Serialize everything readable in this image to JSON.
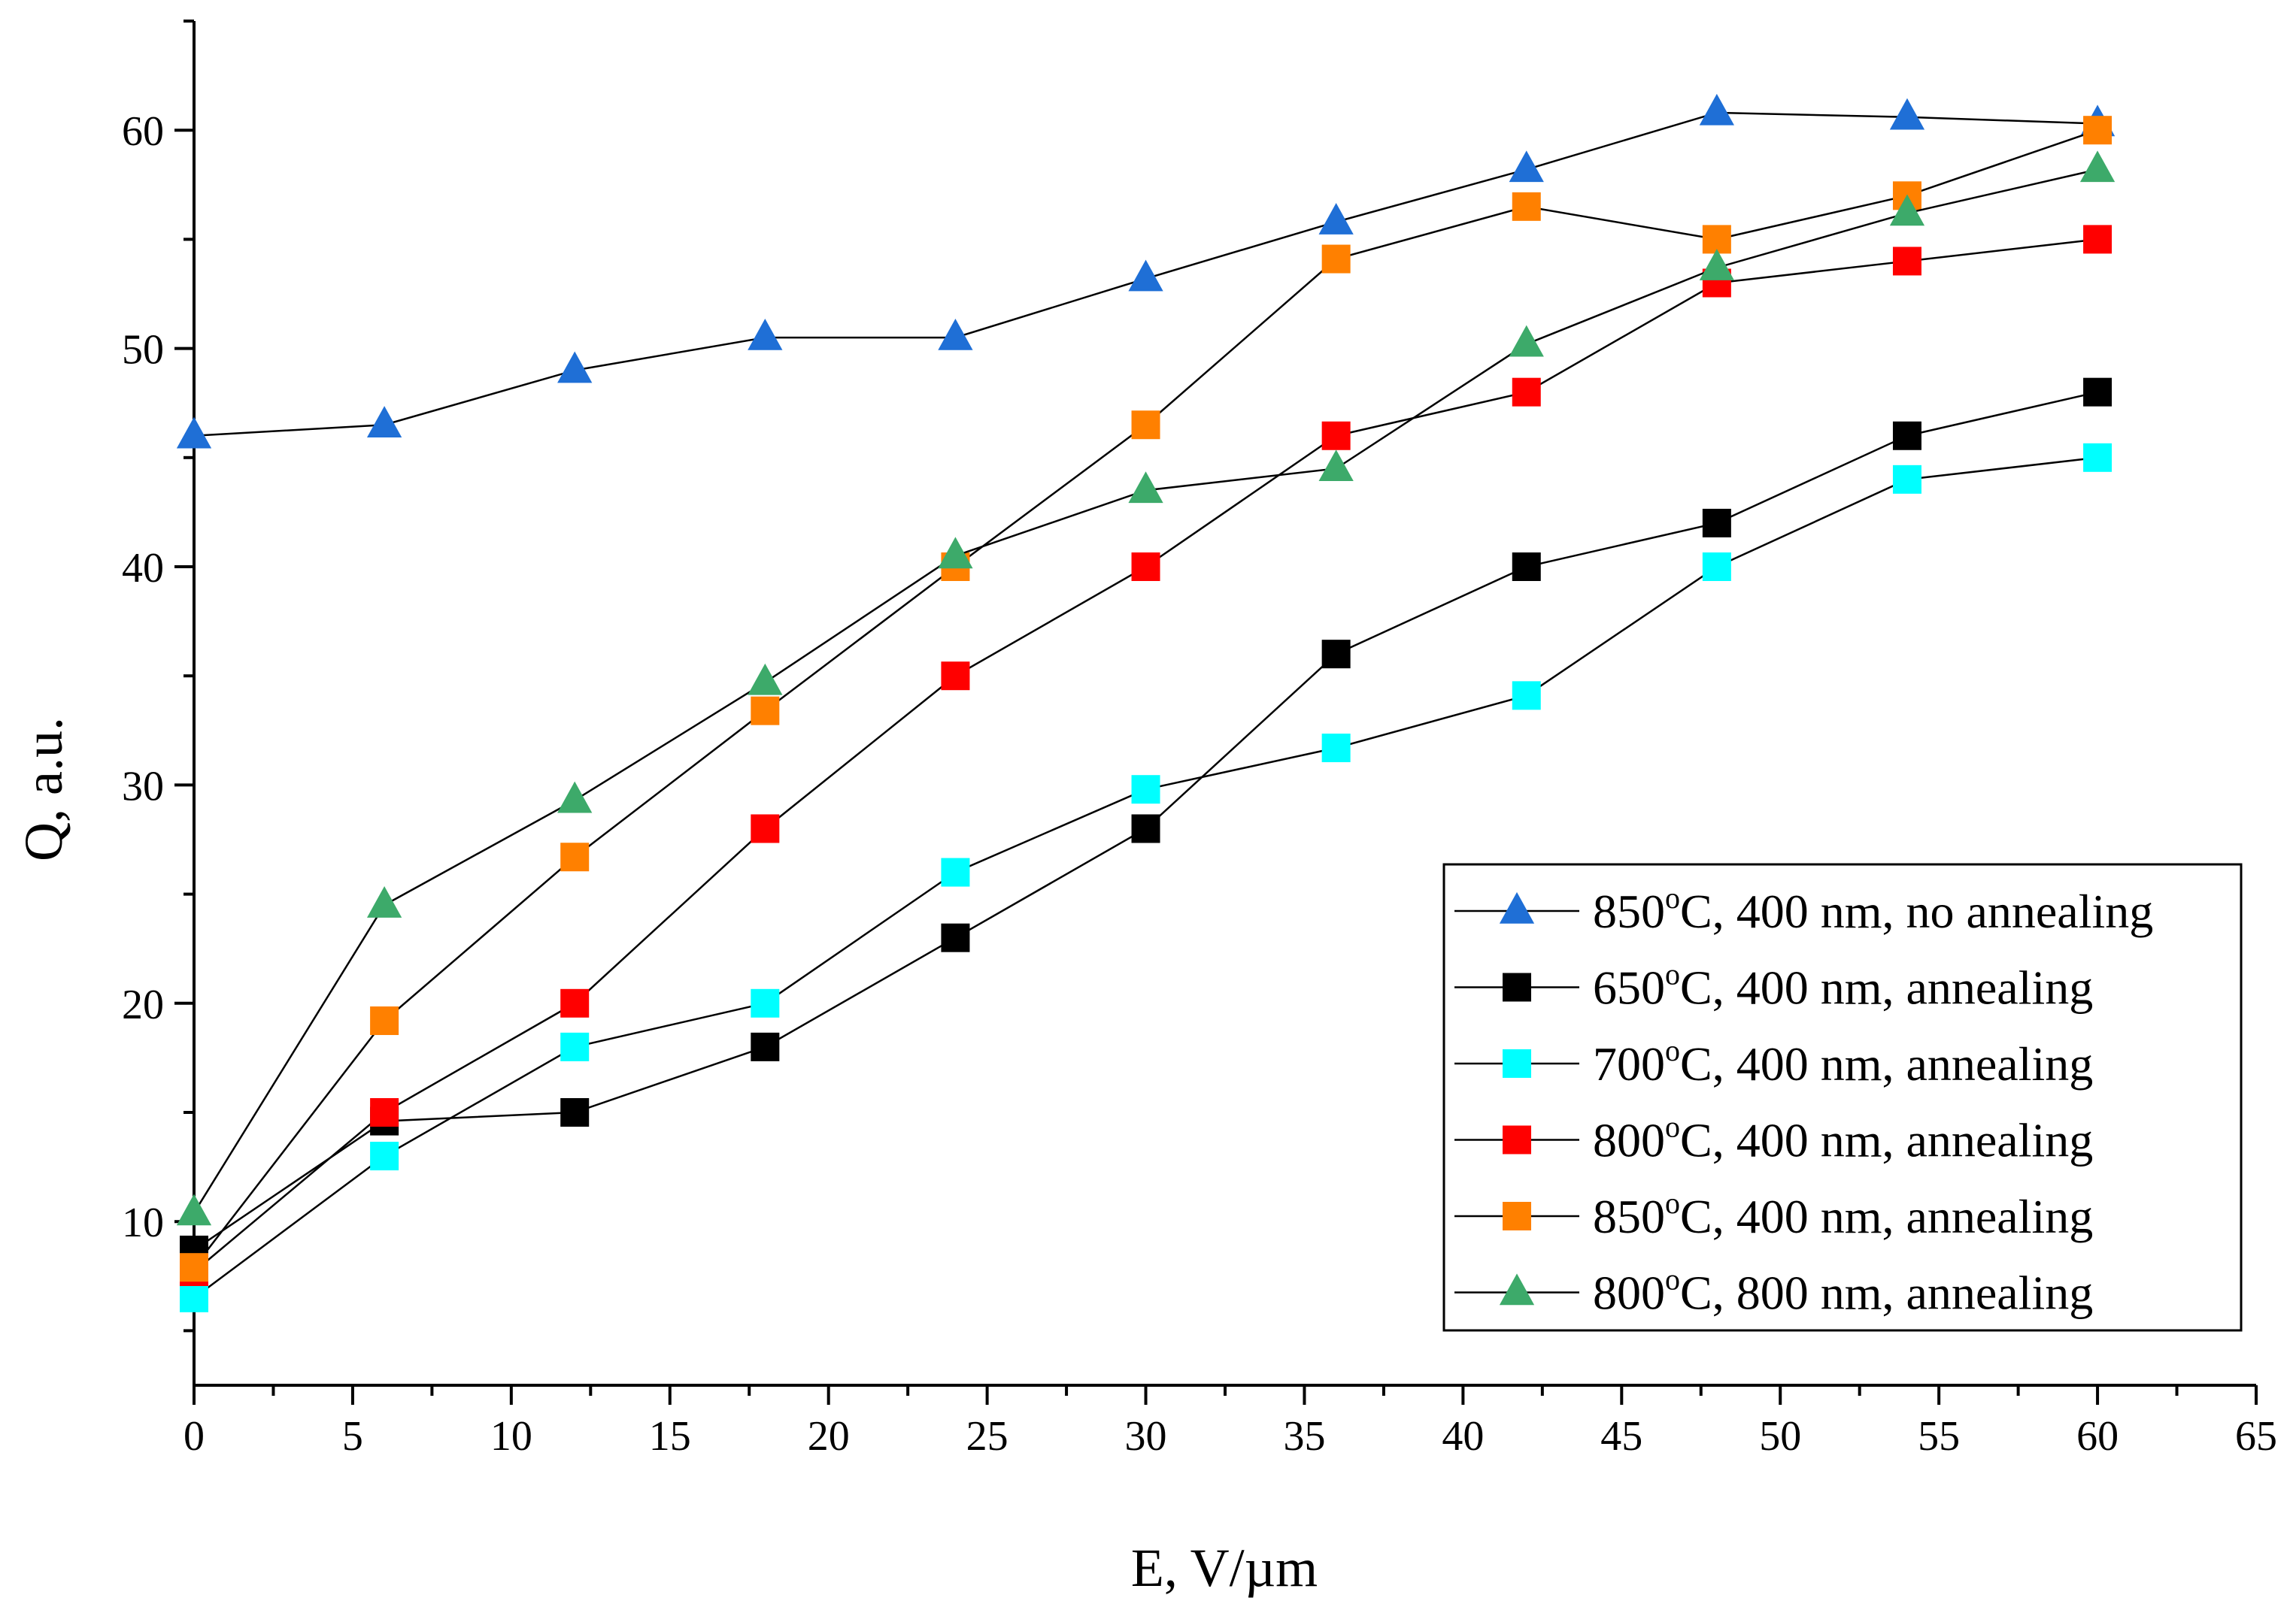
{
  "chart_data": {
    "type": "line",
    "title": "",
    "xlabel": "E, V/µm",
    "ylabel": "Q, a.u.",
    "xlim": [
      0,
      65
    ],
    "ylim": [
      2.5,
      65
    ],
    "x_ticks": [
      0,
      5,
      10,
      15,
      20,
      25,
      30,
      35,
      40,
      45,
      50,
      55,
      60,
      65
    ],
    "y_ticks": [
      10,
      20,
      30,
      40,
      50,
      60
    ],
    "legend_position": "bottom-right",
    "grid": false,
    "x": [
      0,
      6,
      12,
      18,
      24,
      30,
      36,
      42,
      48,
      54,
      60
    ],
    "series": [
      {
        "name": "850",
        "label_rest": "C, 400 nm, no annealing",
        "marker": "triangle",
        "color": "#1f6fd6",
        "values": [
          46,
          46.5,
          49,
          50.5,
          50.5,
          53.2,
          55.8,
          58.2,
          60.8,
          60.6,
          60.3
        ]
      },
      {
        "name": "650",
        "label_rest": "C, 400 nm, annealing",
        "marker": "square",
        "color": "#000000",
        "values": [
          8.7,
          14.6,
          15,
          18,
          23,
          28,
          36,
          40,
          42,
          46,
          48
        ]
      },
      {
        "name": "700",
        "label_rest": "C, 400 nm, annealing",
        "marker": "square",
        "color": "#00ffff",
        "values": [
          6.5,
          13,
          18,
          20,
          26,
          29.8,
          31.7,
          34.1,
          40,
          44,
          45
        ]
      },
      {
        "name": "800",
        "label_rest": "C, 400 nm, annealing",
        "marker": "square",
        "color": "#ff0000",
        "values": [
          7.7,
          15,
          20,
          28,
          35,
          40,
          46,
          48,
          53,
          54,
          55
        ]
      },
      {
        "name": "850",
        "label_rest": "C, 400 nm, annealing",
        "marker": "square",
        "color": "#ff8000",
        "values": [
          7.9,
          19.2,
          26.7,
          33.4,
          40,
          46.5,
          54.1,
          56.5,
          55,
          57,
          60
        ]
      },
      {
        "name": "800",
        "label_rest": "C, 800 nm, annealing",
        "marker": "triangle",
        "color": "#3daa6a",
        "values": [
          10.4,
          24.5,
          29.3,
          34.7,
          40.5,
          43.5,
          44.5,
          50.2,
          53.7,
          56.2,
          58.2
        ]
      }
    ],
    "degree_symbol": "o"
  }
}
